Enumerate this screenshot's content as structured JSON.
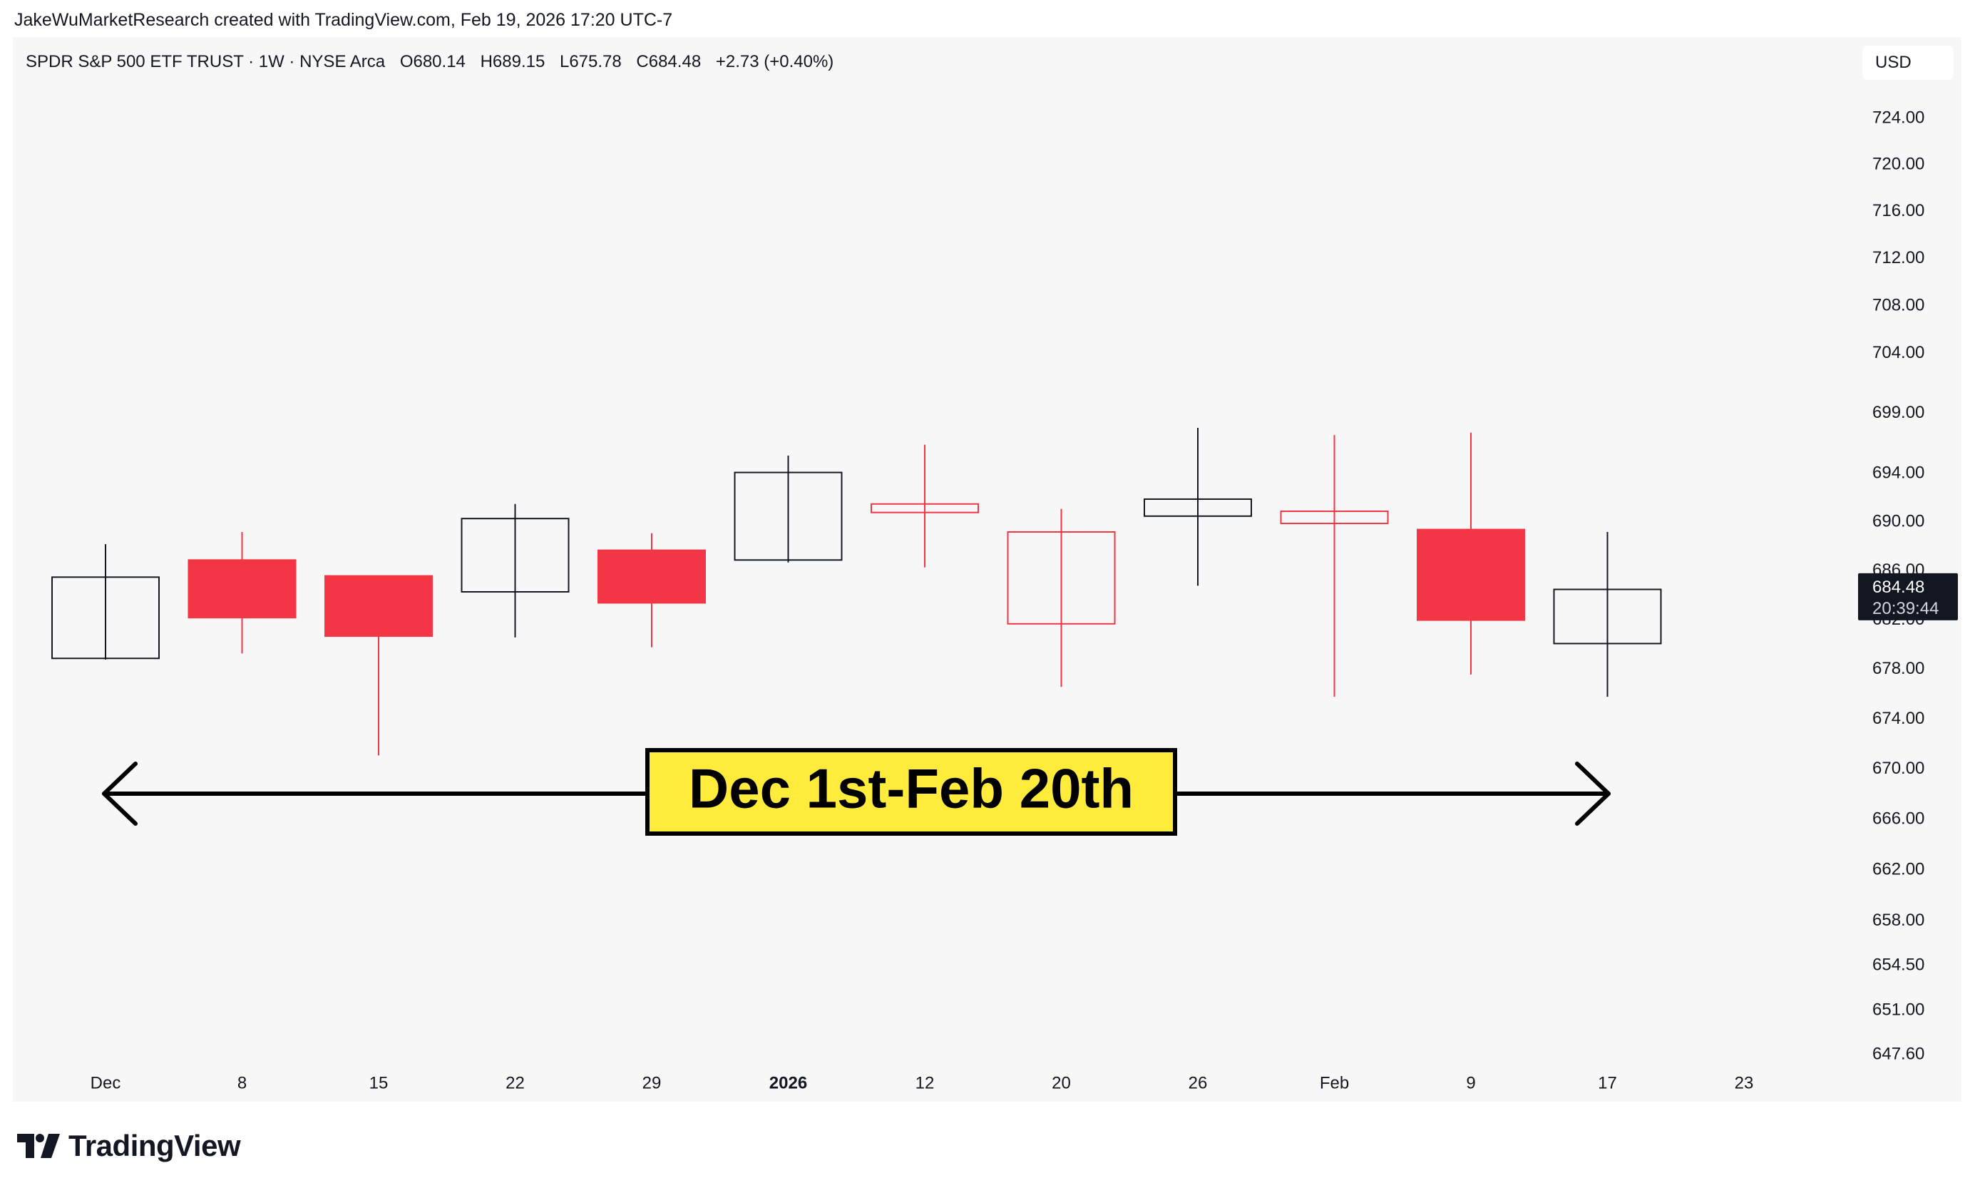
{
  "attribution": "JakeWuMarketResearch created with TradingView.com, Feb 19, 2026 17:20 UTC-7",
  "header": {
    "symbol": "SPDR S&P 500 ETF TRUST · 1W · NYSE Arca",
    "open": "O680.14",
    "high": "H689.15",
    "low": "L675.78",
    "close": "C684.48",
    "change": "+2.73 (+0.40%)",
    "currency": "USD"
  },
  "brand": {
    "name": "TradingView"
  },
  "colors": {
    "up": "#131722",
    "down": "#f23645",
    "background": "#f7f7f7",
    "annotation_fill": "#ffeb3b"
  },
  "chart_data": {
    "type": "candlestick",
    "interval": "1W",
    "y_axis": {
      "scale": "log",
      "ticks": [
        "724.00",
        "720.00",
        "716.00",
        "712.00",
        "708.00",
        "704.00",
        "699.00",
        "694.00",
        "690.00",
        "686.00",
        "682.00",
        "678.00",
        "674.00",
        "670.00",
        "666.00",
        "662.00",
        "658.00",
        "654.50",
        "651.00",
        "647.60"
      ]
    },
    "x_axis": {
      "ticks": [
        {
          "label": "Dec",
          "bold": false
        },
        {
          "label": "8",
          "bold": false
        },
        {
          "label": "15",
          "bold": false
        },
        {
          "label": "22",
          "bold": false
        },
        {
          "label": "29",
          "bold": false
        },
        {
          "label": "2026",
          "bold": true
        },
        {
          "label": "12",
          "bold": false
        },
        {
          "label": "20",
          "bold": false
        },
        {
          "label": "26",
          "bold": false
        },
        {
          "label": "Feb",
          "bold": false
        },
        {
          "label": "9",
          "bold": false
        },
        {
          "label": "17",
          "bold": false
        },
        {
          "label": "23",
          "bold": false
        }
      ]
    },
    "candles": [
      {
        "date": "2025-12-01",
        "open": 678.9,
        "high": 688.2,
        "low": 678.8,
        "close": 685.5,
        "filled": false
      },
      {
        "date": "2025-12-08",
        "open": 686.9,
        "high": 689.2,
        "low": 679.3,
        "close": 682.2,
        "filled": true
      },
      {
        "date": "2025-12-15",
        "open": 685.6,
        "high": 685.6,
        "low": 671.1,
        "close": 680.7,
        "filled": true
      },
      {
        "date": "2025-12-22",
        "open": 684.3,
        "high": 691.5,
        "low": 680.6,
        "close": 690.3,
        "filled": false
      },
      {
        "date": "2025-12-29",
        "open": 687.7,
        "high": 689.1,
        "low": 679.8,
        "close": 683.4,
        "filled": true
      },
      {
        "date": "2026-01-05",
        "open": 686.9,
        "high": 695.5,
        "low": 686.7,
        "close": 694.1,
        "filled": false
      },
      {
        "date": "2026-01-12",
        "open": 691.5,
        "high": 696.4,
        "low": 686.3,
        "close": 690.8,
        "filled": false
      },
      {
        "date": "2026-01-20",
        "open": 689.2,
        "high": 691.1,
        "low": 676.6,
        "close": 681.7,
        "filled": false
      },
      {
        "date": "2026-01-26",
        "open": 690.5,
        "high": 697.8,
        "low": 684.8,
        "close": 691.9,
        "filled": false
      },
      {
        "date": "2026-02-02",
        "open": 690.9,
        "high": 697.2,
        "low": 675.8,
        "close": 689.9,
        "filled": false
      },
      {
        "date": "2026-02-09",
        "open": 689.4,
        "high": 697.4,
        "low": 677.6,
        "close": 682.0,
        "filled": true
      },
      {
        "date": "2026-02-17",
        "open": 680.1,
        "high": 689.2,
        "low": 675.8,
        "close": 684.5,
        "filled": false
      }
    ],
    "last_price": {
      "label": "684.48",
      "countdown": "20:39:44"
    },
    "annotation": {
      "text": "Dec 1st-Feb 20th",
      "from": "2025-12-01",
      "to": "2026-02-17"
    }
  }
}
